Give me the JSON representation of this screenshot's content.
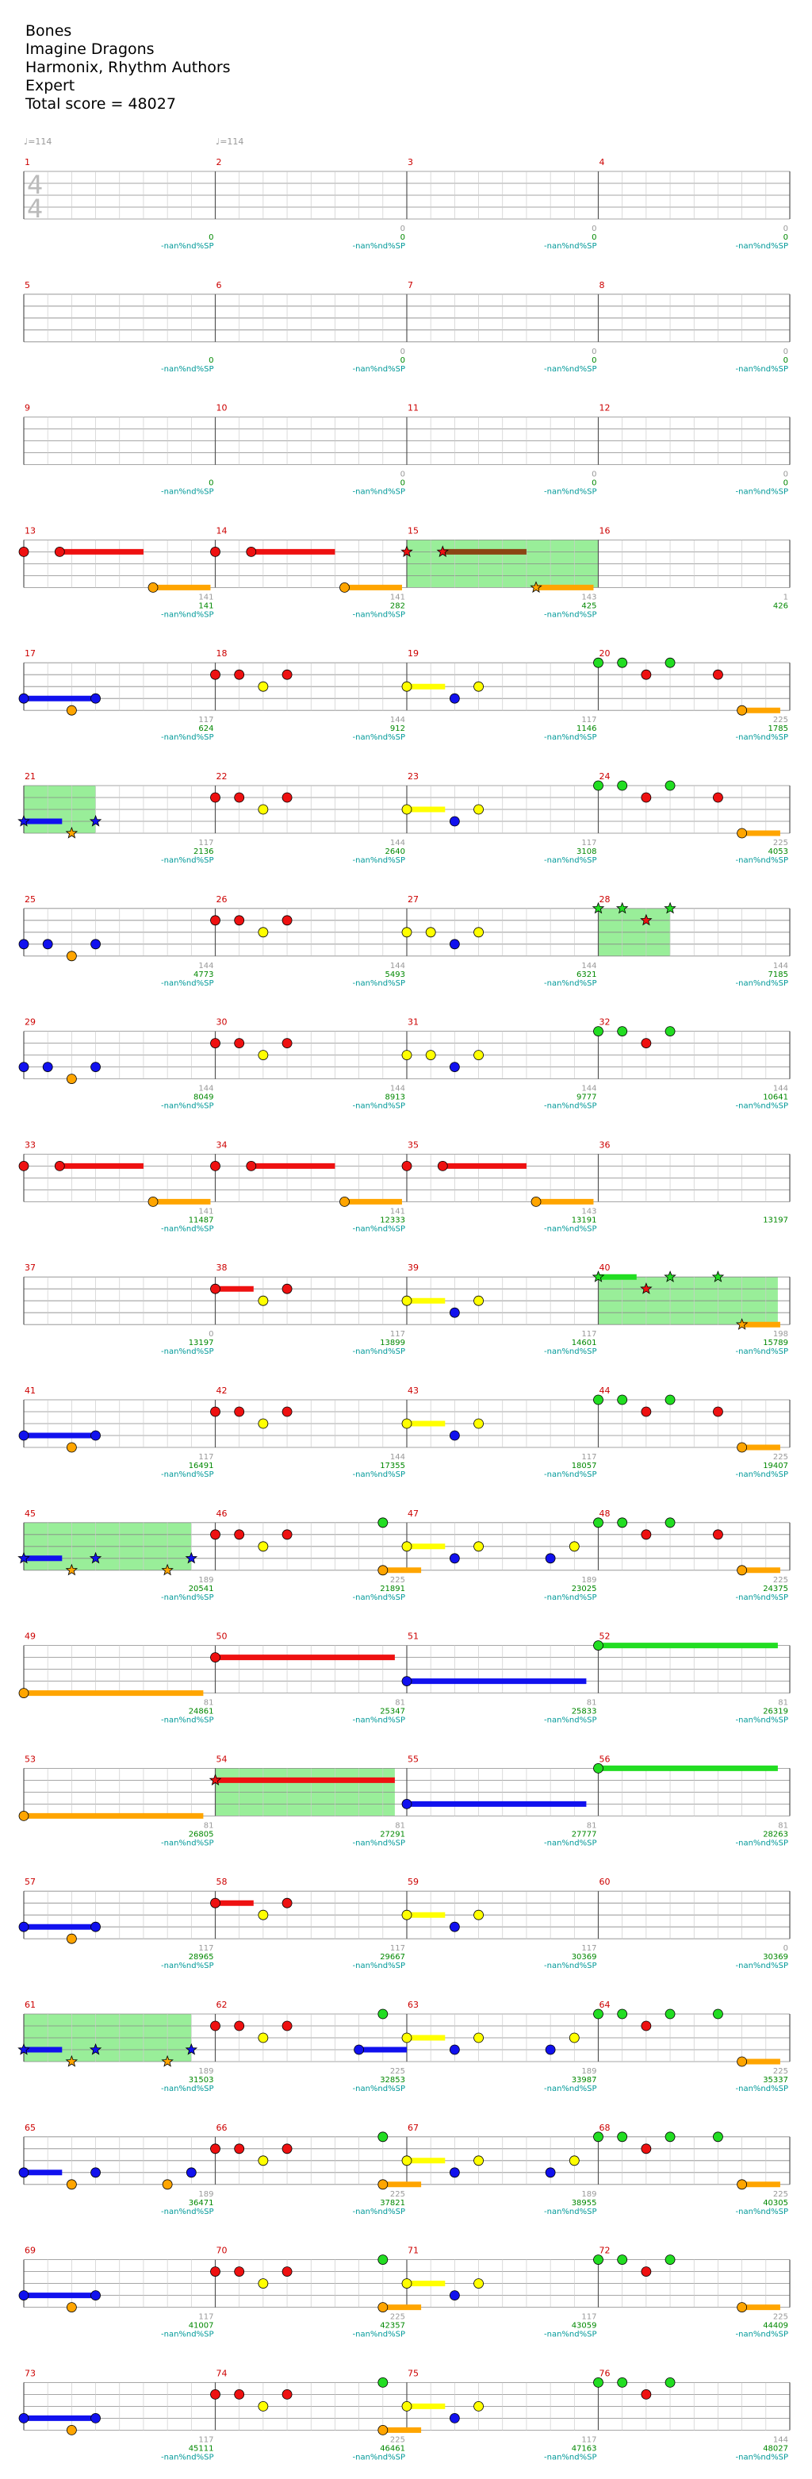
{
  "song": {
    "title": "Bones",
    "artist": "Imagine Dragons",
    "charter": "Harmonix, Rhythm Authors",
    "difficulty": "Expert",
    "total_score": "Total score = 48027"
  },
  "tempo": {
    "label": "♩=114"
  },
  "time_signature": {
    "top": "4",
    "bottom": "4"
  },
  "special_label": "-nan%nd%SP",
  "colors": {
    "green": "#22dd22",
    "red": "#ee1111",
    "yellow": "#ffff00",
    "blue": "#1111ee",
    "orange": "#ffa500",
    "sp_fill": "#99ee99",
    "sp_tail": "#8b4513"
  },
  "rows": [
    {
      "first_measure": 1,
      "labels": [
        [
          "",
          "0",
          "-nan%nd%SP"
        ],
        [
          "0",
          "0",
          "-nan%nd%SP"
        ],
        [
          "0",
          "0",
          "-nan%nd%SP"
        ],
        [
          "0",
          "0",
          "-nan%nd%SP"
        ]
      ]
    },
    {
      "first_measure": 5,
      "labels": [
        [
          "",
          "0",
          "-nan%nd%SP"
        ],
        [
          "0",
          "0",
          "-nan%nd%SP"
        ],
        [
          "0",
          "0",
          "-nan%nd%SP"
        ],
        [
          "0",
          "0",
          "-nan%nd%SP"
        ]
      ]
    },
    {
      "first_measure": 9,
      "labels": [
        [
          "",
          "0",
          "-nan%nd%SP"
        ],
        [
          "0",
          "0",
          "-nan%nd%SP"
        ],
        [
          "0",
          "0",
          "-nan%nd%SP"
        ],
        [
          "0",
          "0",
          "-nan%nd%SP"
        ]
      ]
    },
    {
      "first_measure": 13,
      "labels": [
        [
          "141",
          "141",
          "-nan%nd%SP"
        ],
        [
          "141",
          "282",
          "-nan%nd%SP"
        ],
        [
          "143",
          "425",
          "-nan%nd%SP"
        ],
        [
          "1",
          "426",
          ""
        ]
      ]
    },
    {
      "first_measure": 17,
      "labels": [
        [
          "117",
          "624",
          "-nan%nd%SP"
        ],
        [
          "144",
          "912",
          "-nan%nd%SP"
        ],
        [
          "117",
          "1146",
          "-nan%nd%SP"
        ],
        [
          "225",
          "1785",
          "-nan%nd%SP"
        ]
      ]
    },
    {
      "first_measure": 21,
      "labels": [
        [
          "117",
          "2136",
          "-nan%nd%SP"
        ],
        [
          "144",
          "2640",
          "-nan%nd%SP"
        ],
        [
          "117",
          "3108",
          "-nan%nd%SP"
        ],
        [
          "225",
          "4053",
          "-nan%nd%SP"
        ]
      ]
    },
    {
      "first_measure": 25,
      "labels": [
        [
          "144",
          "4773",
          "-nan%nd%SP"
        ],
        [
          "144",
          "5493",
          "-nan%nd%SP"
        ],
        [
          "144",
          "6321",
          "-nan%nd%SP"
        ],
        [
          "144",
          "7185",
          "-nan%nd%SP"
        ]
      ]
    },
    {
      "first_measure": 29,
      "labels": [
        [
          "144",
          "8049",
          "-nan%nd%SP"
        ],
        [
          "144",
          "8913",
          "-nan%nd%SP"
        ],
        [
          "144",
          "9777",
          "-nan%nd%SP"
        ],
        [
          "144",
          "10641",
          "-nan%nd%SP"
        ]
      ]
    },
    {
      "first_measure": 33,
      "labels": [
        [
          "141",
          "11487",
          "-nan%nd%SP"
        ],
        [
          "141",
          "12333",
          "-nan%nd%SP"
        ],
        [
          "143",
          "13191",
          "-nan%nd%SP"
        ],
        [
          "",
          "13197",
          ""
        ]
      ]
    },
    {
      "first_measure": 37,
      "labels": [
        [
          "0",
          "13197",
          "-nan%nd%SP"
        ],
        [
          "117",
          "13899",
          "-nan%nd%SP"
        ],
        [
          "117",
          "14601",
          "-nan%nd%SP"
        ],
        [
          "198",
          "15789",
          "-nan%nd%SP"
        ]
      ]
    },
    {
      "first_measure": 41,
      "labels": [
        [
          "117",
          "16491",
          "-nan%nd%SP"
        ],
        [
          "144",
          "17355",
          "-nan%nd%SP"
        ],
        [
          "117",
          "18057",
          "-nan%nd%SP"
        ],
        [
          "225",
          "19407",
          "-nan%nd%SP"
        ]
      ]
    },
    {
      "first_measure": 45,
      "labels": [
        [
          "189",
          "20541",
          "-nan%nd%SP"
        ],
        [
          "225",
          "21891",
          "-nan%nd%SP"
        ],
        [
          "189",
          "23025",
          "-nan%nd%SP"
        ],
        [
          "225",
          "24375",
          "-nan%nd%SP"
        ]
      ]
    },
    {
      "first_measure": 49,
      "labels": [
        [
          "81",
          "24861",
          "-nan%nd%SP"
        ],
        [
          "81",
          "25347",
          "-nan%nd%SP"
        ],
        [
          "81",
          "25833",
          "-nan%nd%SP"
        ],
        [
          "81",
          "26319",
          "-nan%nd%SP"
        ]
      ]
    },
    {
      "first_measure": 53,
      "labels": [
        [
          "81",
          "26805",
          "-nan%nd%SP"
        ],
        [
          "81",
          "27291",
          "-nan%nd%SP"
        ],
        [
          "81",
          "27777",
          "-nan%nd%SP"
        ],
        [
          "81",
          "28263",
          "-nan%nd%SP"
        ]
      ]
    },
    {
      "first_measure": 57,
      "labels": [
        [
          "117",
          "28965",
          "-nan%nd%SP"
        ],
        [
          "117",
          "29667",
          "-nan%nd%SP"
        ],
        [
          "117",
          "30369",
          "-nan%nd%SP"
        ],
        [
          "0",
          "30369",
          "-nan%nd%SP"
        ]
      ]
    },
    {
      "first_measure": 61,
      "labels": [
        [
          "189",
          "31503",
          "-nan%nd%SP"
        ],
        [
          "225",
          "32853",
          "-nan%nd%SP"
        ],
        [
          "189",
          "33987",
          "-nan%nd%SP"
        ],
        [
          "225",
          "35337",
          "-nan%nd%SP"
        ]
      ]
    },
    {
      "first_measure": 65,
      "labels": [
        [
          "189",
          "36471",
          "-nan%nd%SP"
        ],
        [
          "225",
          "37821",
          "-nan%nd%SP"
        ],
        [
          "189",
          "38955",
          "-nan%nd%SP"
        ],
        [
          "225",
          "40305",
          "-nan%nd%SP"
        ]
      ]
    },
    {
      "first_measure": 69,
      "labels": [
        [
          "117",
          "41007",
          "-nan%nd%SP"
        ],
        [
          "225",
          "42357",
          "-nan%nd%SP"
        ],
        [
          "117",
          "43059",
          "-nan%nd%SP"
        ],
        [
          "225",
          "44409",
          "-nan%nd%SP"
        ]
      ]
    },
    {
      "first_measure": 73,
      "labels": [
        [
          "117",
          "45111",
          "-nan%nd%SP"
        ],
        [
          "225",
          "46461",
          "-nan%nd%SP"
        ],
        [
          "117",
          "47163",
          "-nan%nd%SP"
        ],
        [
          "144",
          "48027",
          "-nan%nd%SP"
        ]
      ]
    }
  ]
}
